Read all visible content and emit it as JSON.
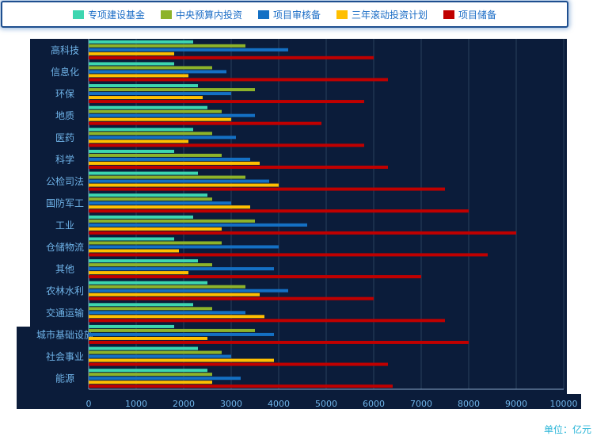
{
  "unit": "单位：亿元",
  "colors": {
    "panel": "#0b1c3a",
    "grid": "#2a3f5c",
    "label": "#6fb3e8"
  },
  "chart_data": {
    "type": "bar",
    "orientation": "horizontal",
    "title": "",
    "xlabel": "",
    "ylabel": "",
    "xlim": [
      0,
      10000
    ],
    "ticks": [
      0,
      1000,
      2000,
      3000,
      4000,
      5000,
      6000,
      7000,
      8000,
      9000,
      10000
    ],
    "legend_position": "top",
    "grid": true,
    "categories": [
      "高科技",
      "信息化",
      "环保",
      "地质",
      "医药",
      "科学",
      "公检司法",
      "国防军工",
      "工业",
      "仓储物流",
      "其他",
      "农林水利",
      "交通运输",
      "城市基础设施",
      "社会事业",
      "能源"
    ],
    "series": [
      {
        "name": "专项建设基金",
        "color": "#3dd6b0",
        "values": [
          2200,
          1800,
          2300,
          2500,
          2200,
          1800,
          2300,
          2500,
          2200,
          1800,
          2300,
          2500,
          2200,
          1800,
          2300,
          2500
        ]
      },
      {
        "name": "中央预算内投资",
        "color": "#8db32a",
        "values": [
          3300,
          2600,
          3500,
          2800,
          2600,
          2800,
          3300,
          2600,
          3500,
          2800,
          2600,
          3300,
          2600,
          3500,
          2800,
          2600
        ]
      },
      {
        "name": "项目审核备",
        "color": "#1470c4",
        "values": [
          4200,
          2900,
          3000,
          3500,
          3100,
          3400,
          3800,
          3000,
          4600,
          4000,
          3900,
          4200,
          3300,
          3900,
          3000,
          3200
        ]
      },
      {
        "name": "三年滚动投资计划",
        "color": "#ffbf00",
        "values": [
          1800,
          2100,
          2400,
          3000,
          2100,
          3600,
          4000,
          3400,
          2800,
          1900,
          2100,
          3600,
          3700,
          2500,
          3900,
          2600
        ]
      },
      {
        "name": "项目储备",
        "color": "#c00000",
        "values": [
          6000,
          6300,
          5800,
          4900,
          5800,
          6300,
          7500,
          8000,
          9000,
          8400,
          7000,
          6000,
          7500,
          8000,
          6300,
          6400
        ]
      }
    ]
  }
}
